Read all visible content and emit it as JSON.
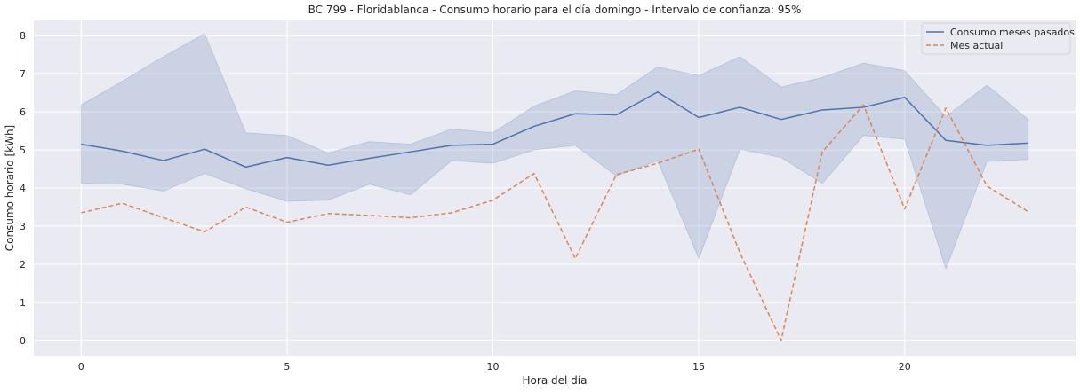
{
  "chart_data": {
    "type": "line",
    "title": "BC 799 - Floridablanca - Consumo horario para el día domingo - Intervalo de confianza: 95%",
    "xlabel": "Hora del día",
    "ylabel": "Consumo horario [kWh]",
    "xlim": [
      -1.15,
      24.15
    ],
    "ylim": [
      -0.4,
      8.4
    ],
    "xticks": [
      0,
      5,
      10,
      15,
      20
    ],
    "yticks": [
      0,
      1,
      2,
      3,
      4,
      5,
      6,
      7,
      8
    ],
    "grid": true,
    "legend_position": "top-right",
    "background": "#eaeaf2",
    "x": [
      0,
      1,
      2,
      3,
      4,
      5,
      6,
      7,
      8,
      9,
      10,
      11,
      12,
      13,
      14,
      15,
      16,
      17,
      18,
      19,
      20,
      21,
      22,
      23
    ],
    "series": [
      {
        "name": "Consumo meses pasados",
        "style": "solid",
        "color": "#4c72b0",
        "values": [
          5.15,
          4.97,
          4.72,
          5.02,
          4.55,
          4.8,
          4.6,
          4.78,
          4.95,
          5.12,
          5.15,
          5.62,
          5.95,
          5.92,
          6.52,
          5.85,
          6.12,
          5.8,
          6.05,
          6.12,
          6.38,
          5.25,
          5.12,
          5.18
        ],
        "ci_lower": [
          4.12,
          4.1,
          3.92,
          4.38,
          3.98,
          3.65,
          3.68,
          4.1,
          3.82,
          4.72,
          4.65,
          5.0,
          5.12,
          4.32,
          4.72,
          2.15,
          5.02,
          4.8,
          4.12,
          5.38,
          5.28,
          1.88,
          4.7,
          4.75
        ],
        "ci_upper": [
          6.18,
          6.8,
          7.45,
          8.05,
          5.45,
          5.38,
          4.92,
          5.22,
          5.15,
          5.55,
          5.45,
          6.15,
          6.55,
          6.45,
          7.18,
          6.95,
          7.45,
          6.65,
          6.9,
          7.28,
          7.08,
          5.88,
          6.7,
          5.8
        ]
      },
      {
        "name": "Mes actual",
        "style": "dashed",
        "color": "#dd8452",
        "values": [
          3.35,
          3.6,
          3.22,
          2.85,
          3.5,
          3.1,
          3.33,
          3.28,
          3.22,
          3.35,
          3.68,
          4.38,
          2.15,
          4.35,
          4.65,
          5.02,
          2.3,
          0.0,
          4.95,
          6.18,
          3.45,
          6.1,
          4.05,
          3.38
        ]
      }
    ]
  }
}
